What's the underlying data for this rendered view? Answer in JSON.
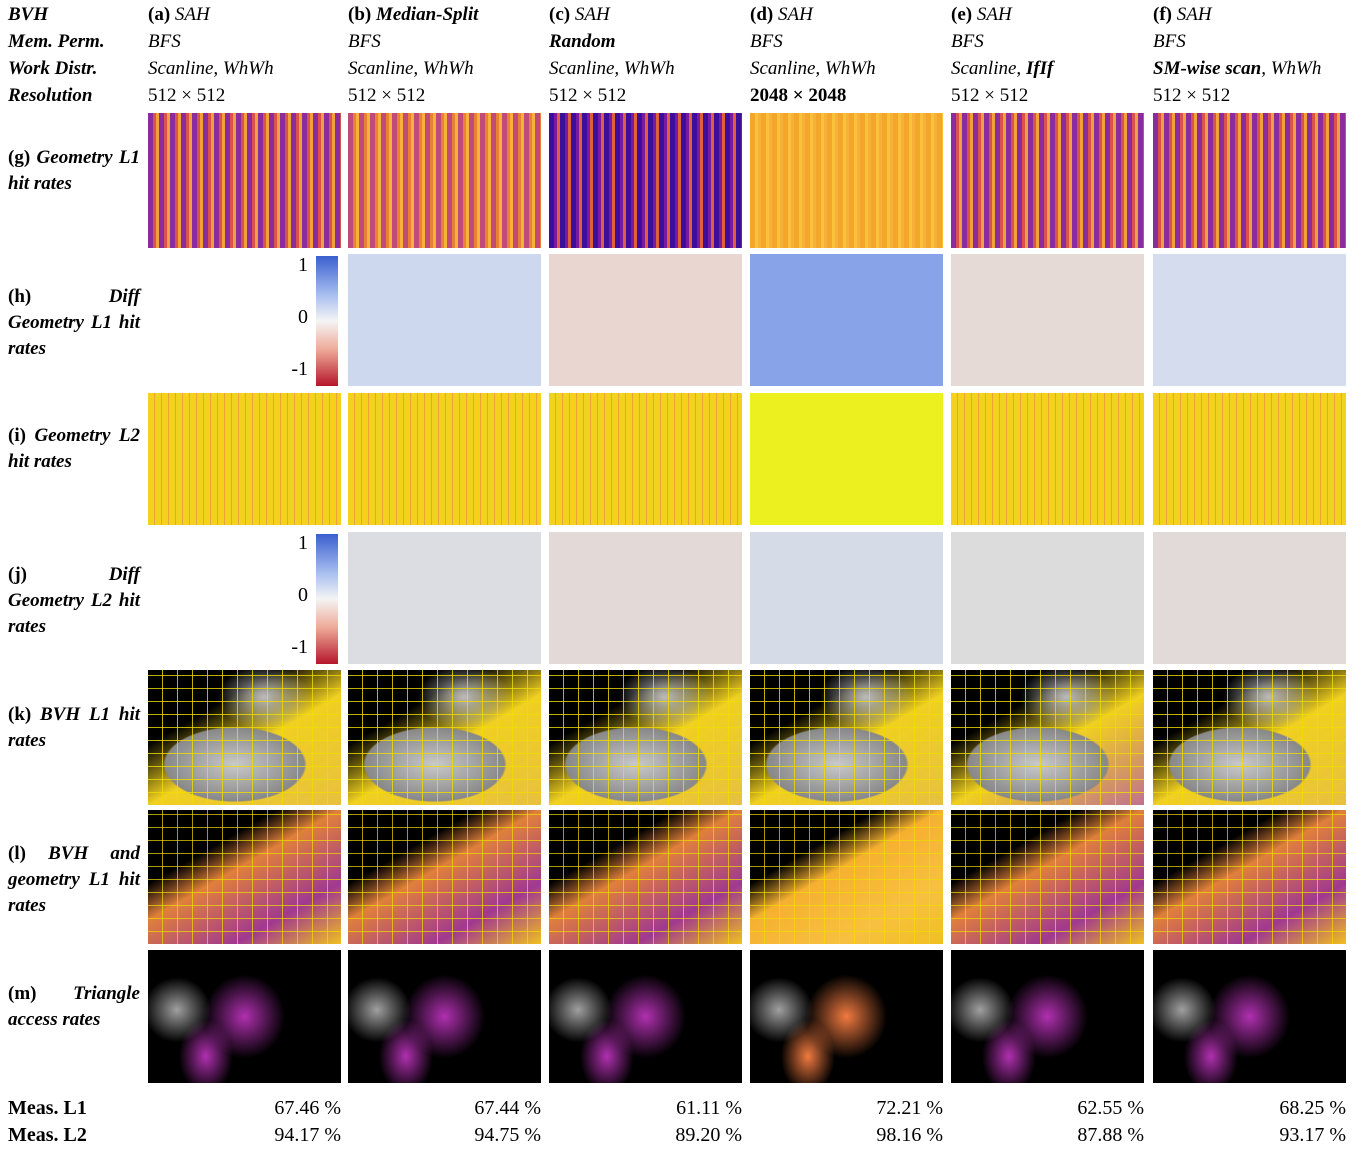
{
  "header_labels": [
    "BVH",
    "Mem. Perm.",
    "Work Distr.",
    "Resolution"
  ],
  "columns": [
    {
      "letter": "(a)",
      "bvh": [
        {
          "text": "SAH"
        }
      ],
      "mem": [
        {
          "text": "BFS"
        }
      ],
      "work": [
        {
          "text": "Scanline, WhWh"
        }
      ],
      "resolution": [
        {
          "text": "512 × 512"
        }
      ]
    },
    {
      "letter": "(b)",
      "bvh": [
        {
          "text": "Median-Split",
          "bold": true
        }
      ],
      "mem": [
        {
          "text": "BFS"
        }
      ],
      "work": [
        {
          "text": "Scanline, WhWh"
        }
      ],
      "resolution": [
        {
          "text": "512 × 512"
        }
      ]
    },
    {
      "letter": "(c)",
      "bvh": [
        {
          "text": "SAH"
        }
      ],
      "mem": [
        {
          "text": "Random",
          "bold": true
        }
      ],
      "work": [
        {
          "text": "Scanline, WhWh"
        }
      ],
      "resolution": [
        {
          "text": "512 × 512"
        }
      ]
    },
    {
      "letter": "(d)",
      "bvh": [
        {
          "text": "SAH"
        }
      ],
      "mem": [
        {
          "text": "BFS"
        }
      ],
      "work": [
        {
          "text": "Scanline, WhWh"
        }
      ],
      "resolution": [
        {
          "text": "2048 × 2048",
          "bold": true
        }
      ]
    },
    {
      "letter": "(e)",
      "bvh": [
        {
          "text": "SAH"
        }
      ],
      "mem": [
        {
          "text": "BFS"
        }
      ],
      "work": [
        {
          "text": "Scanline, "
        },
        {
          "text": "IfIf",
          "bold": true
        }
      ],
      "resolution": [
        {
          "text": "512 × 512"
        }
      ]
    },
    {
      "letter": "(f)",
      "bvh": [
        {
          "text": "SAH"
        }
      ],
      "mem": [
        {
          "text": "BFS"
        }
      ],
      "work": [
        {
          "text": "SM-wise scan",
          "bold": true
        },
        {
          "text": ", WhWh"
        }
      ],
      "resolution": [
        {
          "text": "512 × 512"
        }
      ]
    }
  ],
  "rows": [
    {
      "letter": "(g)",
      "text": "Geometry L1 hit rates"
    },
    {
      "letter": "(h)",
      "text": "Diff Geometry L1 hit rates"
    },
    {
      "letter": "(i)",
      "text": "Geometry L2 hit rates"
    },
    {
      "letter": "(j)",
      "text": "Diff Geometry L2 hit rates"
    },
    {
      "letter": "(k)",
      "text": "BVH L1 hit rates"
    },
    {
      "letter": "(l)",
      "text": "BVH and geometry L1 hit rates"
    },
    {
      "letter": "(m)",
      "text": "Triangle access rates"
    }
  ],
  "colorbar_labels": [
    "1",
    "0",
    "-1"
  ],
  "measurements": [
    {
      "label": "Meas. L1",
      "values": [
        "67.46 %",
        "67.44 %",
        "61.11 %",
        "72.21 %",
        "62.55 %",
        "68.25 %"
      ]
    },
    {
      "label": "Meas. L2",
      "values": [
        "94.17 %",
        "94.75 %",
        "89.20 %",
        "98.16 %",
        "87.88 %",
        "93.17 %"
      ]
    }
  ]
}
